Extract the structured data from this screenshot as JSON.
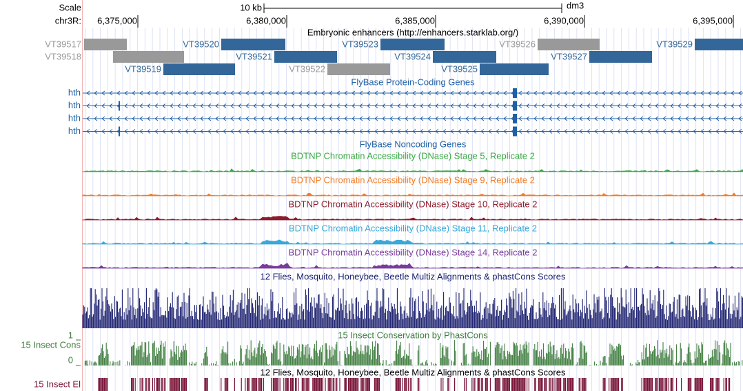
{
  "ruler": {
    "scale_label": "Scale",
    "chrom_label": "chr3R:",
    "scale_bar_label": "10 kb",
    "assembly": "dm3",
    "positions": [
      "6,375,000",
      "6,380,000",
      "6,385,000",
      "6,390,000",
      "6,395,000"
    ]
  },
  "enhancers": {
    "title": "Embryonic enhancers (http://enhancers.starklab.org/)",
    "items": [
      {
        "label": "VT39517",
        "color": "#999999"
      },
      {
        "label": "VT39520",
        "color": "#336699"
      },
      {
        "label": "VT39523",
        "color": "#336699"
      },
      {
        "label": "VT39526",
        "color": "#999999"
      },
      {
        "label": "VT39529",
        "color": "#336699"
      },
      {
        "label": "VT39518",
        "color": "#999999"
      },
      {
        "label": "VT39521",
        "color": "#336699"
      },
      {
        "label": "VT39524",
        "color": "#336699"
      },
      {
        "label": "VT39527",
        "color": "#336699"
      },
      {
        "label": "VT39519",
        "color": "#336699"
      },
      {
        "label": "VT39522",
        "color": "#999999"
      },
      {
        "label": "VT39525",
        "color": "#336699"
      }
    ]
  },
  "protein_coding": {
    "title": "FlyBase Protein-Coding Genes",
    "genes": [
      "hth",
      "hth",
      "hth",
      "hth"
    ]
  },
  "noncoding": {
    "title": "FlyBase Noncoding Genes"
  },
  "dnase": [
    {
      "title": "BDTNP Chromatin Accessibility (DNase) Stage 5, Replicate 2",
      "color": "#3aa844"
    },
    {
      "title": "BDTNP Chromatin Accessibility (DNase) Stage 9, Replicate 2",
      "color": "#f07c26"
    },
    {
      "title": "BDTNP Chromatin Accessibility (DNase) Stage 10, Replicate 2",
      "color": "#8c1c2c"
    },
    {
      "title": "BDTNP Chromatin Accessibility (DNase) Stage 11, Replicate 2",
      "color": "#3aa8d8"
    },
    {
      "title": "BDTNP Chromatin Accessibility (DNase) Stage 14, Replicate 2",
      "color": "#7a3c9c"
    }
  ],
  "multiz": {
    "title": "12 Flies, Mosquito, Honeybee, Beetle Multiz Alignments & phastCons Scores"
  },
  "phastcons": {
    "title": "15 Insect Conservation by PhastCons",
    "left_label": "15 Insect Cons",
    "max_label": "1",
    "min_label": "0"
  },
  "elements": {
    "title": "12 Flies, Mosquito, Honeybee, Beetle Multiz Alignments & phastCons Scores",
    "left_label": "15 Insect El"
  }
}
